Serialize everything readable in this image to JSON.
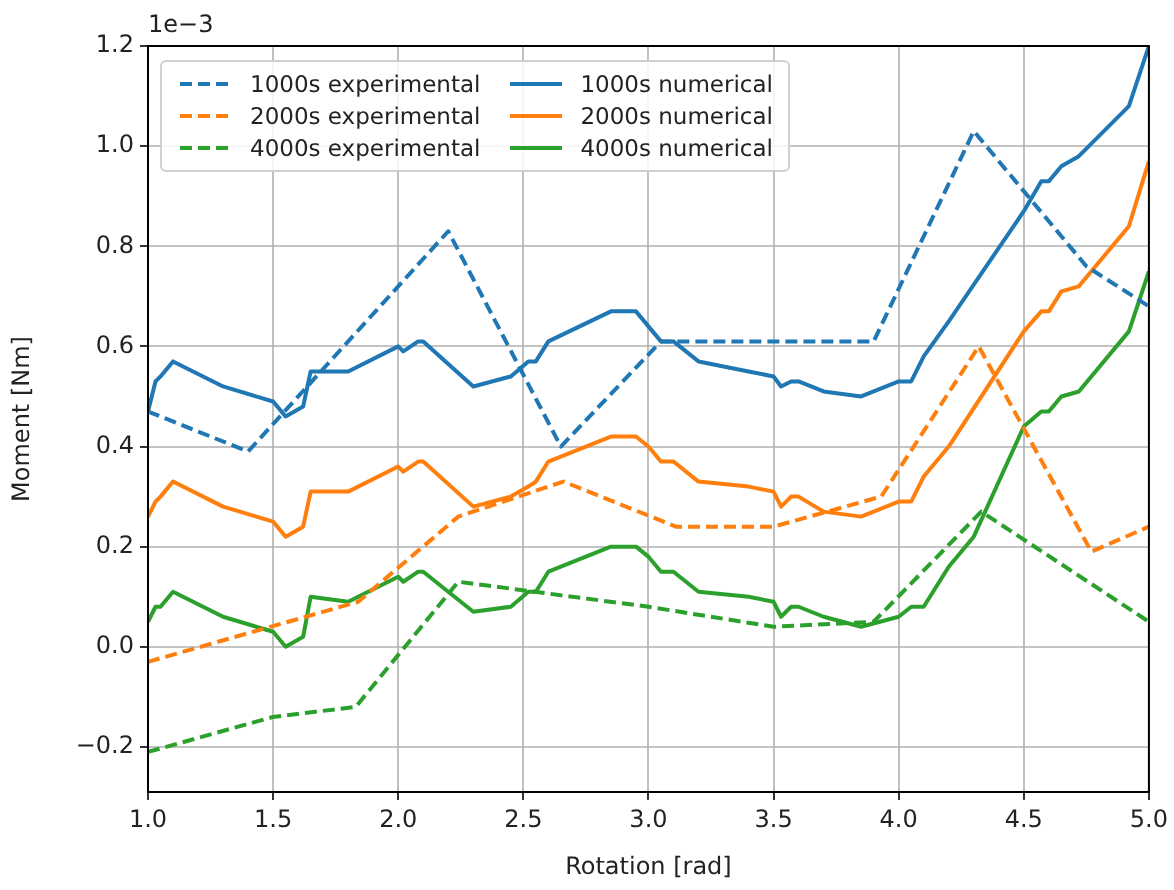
{
  "chart_data": {
    "type": "line",
    "xlabel": "Rotation [rad]",
    "ylabel": "Moment [Nm]",
    "annotations": [
      "1e−3"
    ],
    "xlim": [
      1.0,
      5.0
    ],
    "ylim": [
      -0.29,
      1.2
    ],
    "xticks": [
      {
        "value": 1.0,
        "label": "1.0"
      },
      {
        "value": 1.5,
        "label": "1.5"
      },
      {
        "value": 2.0,
        "label": "2.0"
      },
      {
        "value": 2.5,
        "label": "2.5"
      },
      {
        "value": 3.0,
        "label": "3.0"
      },
      {
        "value": 3.5,
        "label": "3.5"
      },
      {
        "value": 4.0,
        "label": "4.0"
      },
      {
        "value": 4.5,
        "label": "4.5"
      },
      {
        "value": 5.0,
        "label": "5.0"
      }
    ],
    "yticks": [
      {
        "value": -0.2,
        "label": "−0.2"
      },
      {
        "value": 0.0,
        "label": "0.0"
      },
      {
        "value": 0.2,
        "label": "0.2"
      },
      {
        "value": 0.4,
        "label": "0.4"
      },
      {
        "value": 0.6,
        "label": "0.6"
      },
      {
        "value": 0.8,
        "label": "0.8"
      },
      {
        "value": 1.0,
        "label": "1.0"
      },
      {
        "value": 1.2,
        "label": "1.2"
      }
    ],
    "grid": true,
    "legend": "top left",
    "marker": "none",
    "series": [
      {
        "name": "1000s experimental",
        "color": "#1f77b4",
        "line_style": "dashed",
        "x": [
          1.0,
          1.4,
          2.2,
          2.65,
          3.05,
          3.9,
          4.3,
          4.75,
          5.0
        ],
        "values": [
          0.47,
          0.39,
          0.83,
          0.4,
          0.61,
          0.61,
          1.03,
          0.76,
          0.68
        ]
      },
      {
        "name": "2000s experimental",
        "color": "#ff7f0e",
        "line_style": "dashed",
        "x": [
          1.0,
          1.84,
          2.24,
          2.66,
          3.11,
          3.5,
          3.93,
          4.32,
          4.77,
          5.0
        ],
        "values": [
          -0.03,
          0.09,
          0.26,
          0.33,
          0.24,
          0.24,
          0.3,
          0.6,
          0.19,
          0.24
        ]
      },
      {
        "name": "4000s experimental",
        "color": "#2ca02c",
        "line_style": "dashed",
        "x": [
          1.0,
          1.5,
          1.83,
          2.24,
          3.0,
          3.5,
          3.9,
          4.33,
          5.0
        ],
        "values": [
          -0.21,
          -0.14,
          -0.12,
          0.13,
          0.08,
          0.04,
          0.05,
          0.27,
          0.05
        ]
      },
      {
        "name": "1000s numerical",
        "color": "#1f77b4",
        "line_style": "solid",
        "x": [
          1.0,
          1.03,
          1.05,
          1.1,
          1.3,
          1.5,
          1.55,
          1.62,
          1.65,
          1.8,
          2.0,
          2.02,
          2.08,
          2.1,
          2.3,
          2.45,
          2.52,
          2.55,
          2.6,
          2.85,
          2.95,
          3.0,
          3.05,
          3.1,
          3.2,
          3.4,
          3.5,
          3.53,
          3.57,
          3.6,
          3.7,
          3.85,
          4.0,
          4.05,
          4.1,
          4.2,
          4.5,
          4.57,
          4.6,
          4.65,
          4.72,
          4.92,
          5.0
        ],
        "values": [
          0.47,
          0.53,
          0.54,
          0.57,
          0.52,
          0.49,
          0.46,
          0.48,
          0.55,
          0.55,
          0.6,
          0.59,
          0.61,
          0.61,
          0.52,
          0.54,
          0.57,
          0.57,
          0.61,
          0.67,
          0.67,
          0.64,
          0.61,
          0.61,
          0.57,
          0.55,
          0.54,
          0.52,
          0.53,
          0.53,
          0.51,
          0.5,
          0.53,
          0.53,
          0.58,
          0.65,
          0.87,
          0.93,
          0.93,
          0.96,
          0.98,
          1.08,
          1.2
        ]
      },
      {
        "name": "2000s numerical",
        "color": "#ff7f0e",
        "line_style": "solid",
        "x": [
          1.0,
          1.03,
          1.05,
          1.1,
          1.3,
          1.5,
          1.55,
          1.62,
          1.65,
          1.8,
          2.0,
          2.02,
          2.08,
          2.1,
          2.3,
          2.45,
          2.52,
          2.55,
          2.6,
          2.85,
          2.95,
          3.0,
          3.05,
          3.1,
          3.2,
          3.4,
          3.5,
          3.53,
          3.57,
          3.6,
          3.7,
          3.85,
          4.0,
          4.05,
          4.1,
          4.2,
          4.5,
          4.57,
          4.6,
          4.65,
          4.72,
          4.92,
          5.0
        ],
        "values": [
          0.26,
          0.29,
          0.3,
          0.33,
          0.28,
          0.25,
          0.22,
          0.24,
          0.31,
          0.31,
          0.36,
          0.35,
          0.37,
          0.37,
          0.28,
          0.3,
          0.32,
          0.33,
          0.37,
          0.42,
          0.42,
          0.4,
          0.37,
          0.37,
          0.33,
          0.32,
          0.31,
          0.28,
          0.3,
          0.3,
          0.27,
          0.26,
          0.29,
          0.29,
          0.34,
          0.4,
          0.63,
          0.67,
          0.67,
          0.71,
          0.72,
          0.84,
          0.97
        ]
      },
      {
        "name": "4000s numerical",
        "color": "#2ca02c",
        "line_style": "solid",
        "x": [
          1.0,
          1.03,
          1.05,
          1.1,
          1.3,
          1.5,
          1.55,
          1.62,
          1.65,
          1.8,
          2.0,
          2.02,
          2.08,
          2.1,
          2.3,
          2.45,
          2.52,
          2.55,
          2.6,
          2.85,
          2.95,
          3.0,
          3.05,
          3.1,
          3.2,
          3.4,
          3.5,
          3.53,
          3.57,
          3.6,
          3.7,
          3.85,
          4.0,
          4.05,
          4.1,
          4.2,
          4.3,
          4.5,
          4.57,
          4.6,
          4.65,
          4.72,
          4.92,
          5.0
        ],
        "values": [
          0.05,
          0.08,
          0.08,
          0.11,
          0.06,
          0.03,
          0.0,
          0.02,
          0.1,
          0.09,
          0.14,
          0.13,
          0.15,
          0.15,
          0.07,
          0.08,
          0.11,
          0.11,
          0.15,
          0.2,
          0.2,
          0.18,
          0.15,
          0.15,
          0.11,
          0.1,
          0.09,
          0.06,
          0.08,
          0.08,
          0.06,
          0.04,
          0.06,
          0.08,
          0.08,
          0.16,
          0.22,
          0.44,
          0.47,
          0.47,
          0.5,
          0.51,
          0.63,
          0.75
        ]
      }
    ]
  }
}
